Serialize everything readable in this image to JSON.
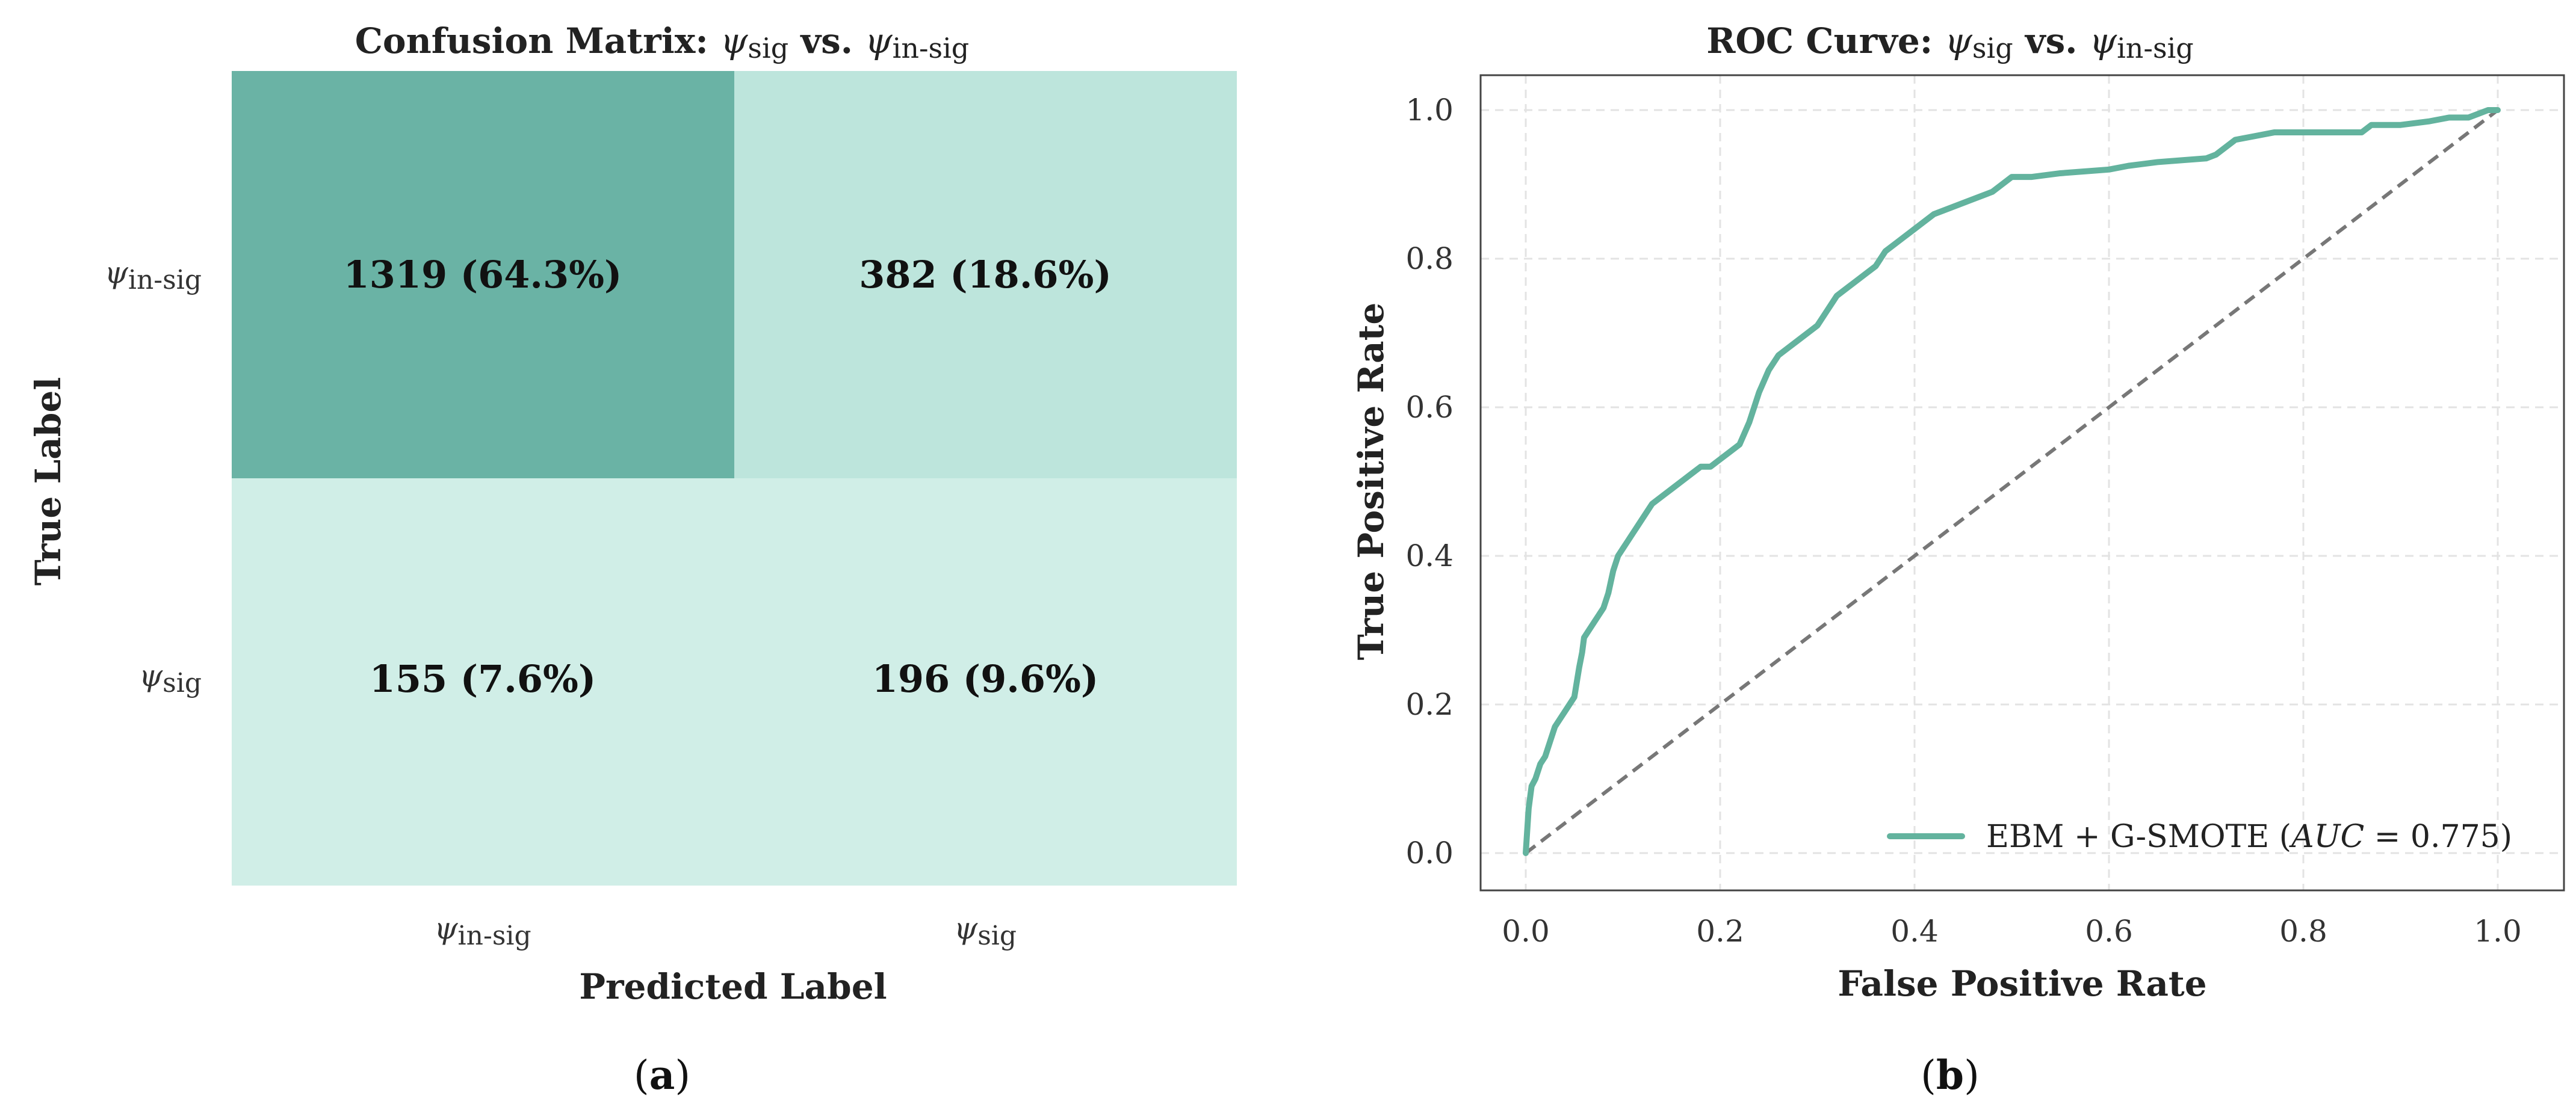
{
  "colors": {
    "cm_dark": "#6ab3a5",
    "cm_mid": "#bde5dc",
    "cm_light": "#d0eee7",
    "roc": "#63b39e",
    "diagonal": "#777777",
    "grid": "#e3e3e3"
  },
  "chart_data": [
    {
      "type": "heatmap",
      "title": {
        "prefix": "Confusion Matrix: ",
        "s1": "ψ",
        "sub1": "sig",
        "mid": " vs. ",
        "s2": "ψ",
        "sub2": "in-sig"
      },
      "xlabel": "Predicted Label",
      "ylabel": "True Label",
      "row_labels": [
        {
          "sym": "ψ",
          "sub": "in-sig"
        },
        {
          "sym": "ψ",
          "sub": "sig"
        }
      ],
      "col_labels": [
        {
          "sym": "ψ",
          "sub": "in-sig"
        },
        {
          "sym": "ψ",
          "sub": "sig"
        }
      ],
      "cells": [
        [
          {
            "value": 1319,
            "label": "1319 (64.3%)",
            "shade": "cm_dark"
          },
          {
            "value": 382,
            "label": "382 (18.6%)",
            "shade": "cm_mid"
          }
        ],
        [
          {
            "value": 155,
            "label": "155 (7.6%)",
            "shade": "cm_light"
          },
          {
            "value": 196,
            "label": "196 (9.6%)",
            "shade": "cm_light"
          }
        ]
      ],
      "panel_label": "a"
    },
    {
      "type": "line",
      "title": {
        "prefix": "ROC Curve: ",
        "s1": "ψ",
        "sub1": "sig",
        "mid": " vs. ",
        "s2": "ψ",
        "sub2": "in-sig"
      },
      "xlabel": "False Positive Rate",
      "ylabel": "True Positive Rate",
      "xlim": [
        0,
        1
      ],
      "ylim": [
        0,
        1
      ],
      "xticks": [
        "0.0",
        "0.2",
        "0.4",
        "0.6",
        "0.8",
        "1.0"
      ],
      "yticks": [
        "0.0",
        "0.2",
        "0.4",
        "0.6",
        "0.8",
        "1.0"
      ],
      "grid": true,
      "legend_position": "lower-right",
      "series": [
        {
          "name": "EBM + G-SMOTE (AUC = 0.775)",
          "legend_prefix": "EBM + G-SMOTE (",
          "legend_italic": "AUC",
          "legend_suffix": " = 0.775)",
          "x": [
            0,
            0.003,
            0.006,
            0.01,
            0.015,
            0.02,
            0.025,
            0.03,
            0.035,
            0.04,
            0.045,
            0.05,
            0.055,
            0.058,
            0.06,
            0.065,
            0.07,
            0.075,
            0.08,
            0.085,
            0.09,
            0.095,
            0.1,
            0.105,
            0.11,
            0.115,
            0.12,
            0.13,
            0.14,
            0.15,
            0.16,
            0.17,
            0.18,
            0.19,
            0.2,
            0.21,
            0.22,
            0.23,
            0.24,
            0.25,
            0.26,
            0.27,
            0.28,
            0.29,
            0.3,
            0.31,
            0.32,
            0.33,
            0.34,
            0.35,
            0.36,
            0.37,
            0.38,
            0.39,
            0.4,
            0.42,
            0.44,
            0.46,
            0.48,
            0.49,
            0.5,
            0.52,
            0.55,
            0.6,
            0.62,
            0.65,
            0.7,
            0.71,
            0.72,
            0.73,
            0.75,
            0.77,
            0.8,
            0.84,
            0.86,
            0.87,
            0.9,
            0.93,
            0.95,
            0.97,
            0.98,
            0.99,
            1.0
          ],
          "y": [
            0,
            0.06,
            0.09,
            0.1,
            0.12,
            0.13,
            0.15,
            0.17,
            0.18,
            0.19,
            0.2,
            0.21,
            0.25,
            0.27,
            0.29,
            0.3,
            0.31,
            0.32,
            0.33,
            0.35,
            0.38,
            0.4,
            0.41,
            0.42,
            0.43,
            0.44,
            0.45,
            0.47,
            0.48,
            0.49,
            0.5,
            0.51,
            0.52,
            0.52,
            0.53,
            0.54,
            0.55,
            0.58,
            0.62,
            0.65,
            0.67,
            0.68,
            0.69,
            0.7,
            0.71,
            0.73,
            0.75,
            0.76,
            0.77,
            0.78,
            0.79,
            0.81,
            0.82,
            0.83,
            0.84,
            0.86,
            0.87,
            0.88,
            0.89,
            0.9,
            0.91,
            0.91,
            0.915,
            0.92,
            0.925,
            0.93,
            0.935,
            0.94,
            0.95,
            0.96,
            0.965,
            0.97,
            0.97,
            0.97,
            0.97,
            0.98,
            0.98,
            0.985,
            0.99,
            0.99,
            0.995,
            1.0,
            1.0
          ]
        },
        {
          "x": [
            0,
            1
          ],
          "y": [
            0,
            1
          ],
          "style": "dashed"
        }
      ],
      "panel_label": "b"
    }
  ]
}
